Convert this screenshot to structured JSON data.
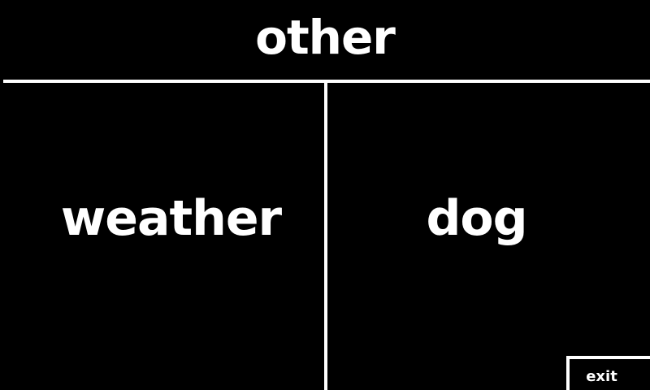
{
  "header": {
    "title": "other"
  },
  "options": [
    {
      "label": "weather"
    },
    {
      "label": "dog"
    }
  ],
  "exit_button": {
    "label": "exit"
  },
  "colors": {
    "background": "#000000",
    "foreground": "#ffffff"
  }
}
